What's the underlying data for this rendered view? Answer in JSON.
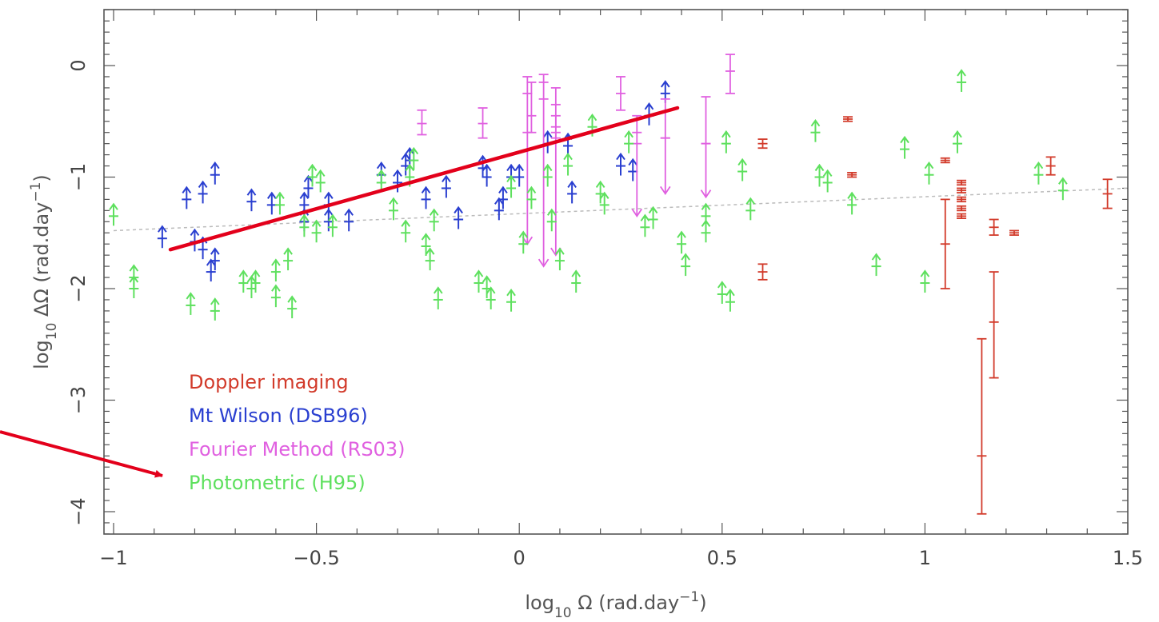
{
  "chart_data": {
    "type": "scatter",
    "title": "",
    "xlabel": {
      "prefix": "log",
      "sub": "10",
      "mid": " Ω (rad.day",
      "sup": "−1",
      "suffix": ")"
    },
    "ylabel": {
      "prefix": "log",
      "sub": "10",
      "mid": " ΔΩ (rad.day",
      "sup": "−1",
      "suffix": ")"
    },
    "xlim": [
      -1,
      1.5
    ],
    "ylim": [
      -4.3,
      0.5
    ],
    "xticks": [
      -1,
      -0.5,
      0,
      0.5,
      1,
      1.5
    ],
    "xtick_labels": [
      "−1",
      "−0.5",
      "0",
      "0.5",
      "1",
      "1.5"
    ],
    "yticks": [
      0,
      -1,
      -2,
      -3,
      -4
    ],
    "ytick_labels": [
      "0",
      "−1",
      "−2",
      "−3",
      "−4"
    ],
    "grid": false,
    "legend_position": "bottom-left",
    "series": [
      {
        "name": "Doppler imaging",
        "color": "#d23a2a",
        "marker": "errorbar",
        "points": [
          {
            "x": 0.6,
            "y": -0.7,
            "lo": -0.74,
            "hi": -0.66
          },
          {
            "x": 0.6,
            "y": -1.85,
            "lo": -1.92,
            "hi": -1.78
          },
          {
            "x": 0.81,
            "y": -0.48,
            "lo": -0.5,
            "hi": -0.46
          },
          {
            "x": 0.82,
            "y": -0.98,
            "lo": -1.0,
            "hi": -0.96
          },
          {
            "x": 1.05,
            "y": -0.85,
            "lo": -0.87,
            "hi": -0.83
          },
          {
            "x": 1.05,
            "y": -1.6,
            "lo": -2.0,
            "hi": -1.2
          },
          {
            "x": 1.09,
            "y": -1.05,
            "lo": -1.07,
            "hi": -1.03
          },
          {
            "x": 1.09,
            "y": -1.12,
            "lo": -1.14,
            "hi": -1.1
          },
          {
            "x": 1.09,
            "y": -1.2,
            "lo": -1.22,
            "hi": -1.18
          },
          {
            "x": 1.09,
            "y": -1.28,
            "lo": -1.3,
            "hi": -1.26
          },
          {
            "x": 1.09,
            "y": -1.35,
            "lo": -1.37,
            "hi": -1.33
          },
          {
            "x": 1.14,
            "y": -3.5,
            "lo": -4.02,
            "hi": -2.45
          },
          {
            "x": 1.17,
            "y": -1.45,
            "lo": -1.52,
            "hi": -1.38
          },
          {
            "x": 1.17,
            "y": -2.3,
            "lo": -2.8,
            "hi": -1.85
          },
          {
            "x": 1.22,
            "y": -1.5,
            "lo": -1.52,
            "hi": -1.48
          },
          {
            "x": 1.31,
            "y": -0.9,
            "lo": -0.98,
            "hi": -0.82
          },
          {
            "x": 1.45,
            "y": -1.15,
            "lo": -1.28,
            "hi": -1.02
          }
        ]
      },
      {
        "name": "Mt Wilson (DSB96)",
        "color": "#2a3fd0",
        "marker": "lower-limit",
        "points": [
          {
            "x": -0.88,
            "y": -1.55
          },
          {
            "x": -0.82,
            "y": -1.2
          },
          {
            "x": -0.8,
            "y": -1.58
          },
          {
            "x": -0.78,
            "y": -1.65
          },
          {
            "x": -0.78,
            "y": -1.15
          },
          {
            "x": -0.76,
            "y": -1.85
          },
          {
            "x": -0.75,
            "y": -1.75
          },
          {
            "x": -0.75,
            "y": -0.98
          },
          {
            "x": -0.66,
            "y": -1.22
          },
          {
            "x": -0.61,
            "y": -1.25
          },
          {
            "x": -0.53,
            "y": -1.4
          },
          {
            "x": -0.53,
            "y": -1.25
          },
          {
            "x": -0.52,
            "y": -1.1
          },
          {
            "x": -0.47,
            "y": -1.4
          },
          {
            "x": -0.47,
            "y": -1.25
          },
          {
            "x": -0.42,
            "y": -1.4
          },
          {
            "x": -0.34,
            "y": -0.98
          },
          {
            "x": -0.3,
            "y": -1.05
          },
          {
            "x": -0.28,
            "y": -0.9
          },
          {
            "x": -0.27,
            "y": -0.85
          },
          {
            "x": -0.23,
            "y": -1.2
          },
          {
            "x": -0.18,
            "y": -1.1
          },
          {
            "x": -0.15,
            "y": -1.38
          },
          {
            "x": -0.09,
            "y": -0.92
          },
          {
            "x": -0.08,
            "y": -1.0
          },
          {
            "x": -0.05,
            "y": -1.3
          },
          {
            "x": -0.04,
            "y": -1.2
          },
          {
            "x": -0.02,
            "y": -1.0
          },
          {
            "x": 0.0,
            "y": -1.0
          },
          {
            "x": 0.07,
            "y": -0.7
          },
          {
            "x": 0.12,
            "y": -0.72
          },
          {
            "x": 0.13,
            "y": -1.15
          },
          {
            "x": 0.25,
            "y": -0.9
          },
          {
            "x": 0.28,
            "y": -0.95
          },
          {
            "x": 0.32,
            "y": -0.45
          },
          {
            "x": 0.36,
            "y": -0.25
          }
        ]
      },
      {
        "name": "Fourier Method (RS03)",
        "color": "#e060e0",
        "marker": "errorbar",
        "points": [
          {
            "x": -0.24,
            "y": -0.52,
            "lo": -0.62,
            "hi": -0.4
          },
          {
            "x": -0.09,
            "y": -0.52,
            "lo": -0.65,
            "hi": -0.38
          },
          {
            "x": 0.02,
            "y": -0.25,
            "lo": -0.6,
            "hi": -0.1,
            "arrow": -1.6
          },
          {
            "x": 0.03,
            "y": -0.45,
            "lo": -0.6,
            "hi": -0.15
          },
          {
            "x": 0.06,
            "y": -0.15,
            "lo": -0.3,
            "hi": -0.08,
            "arrow": -1.8
          },
          {
            "x": 0.09,
            "y": -0.35,
            "lo": -0.6,
            "hi": -0.2,
            "arrow": -1.7
          },
          {
            "x": 0.09,
            "y": -0.55,
            "lo": -0.65,
            "hi": -0.45
          },
          {
            "x": 0.25,
            "y": -0.25,
            "lo": -0.4,
            "hi": -0.1
          },
          {
            "x": 0.29,
            "y": -0.6,
            "lo": -0.7,
            "hi": -0.45,
            "arrow": -1.35
          },
          {
            "x": 0.36,
            "y": -0.65,
            "lo": -0.65,
            "hi": -0.3,
            "arrow": -1.15
          },
          {
            "x": 0.46,
            "y": -0.7,
            "lo": -0.7,
            "hi": -0.28,
            "arrow": -1.18
          },
          {
            "x": 0.52,
            "y": -0.05,
            "lo": -0.25,
            "hi": 0.1
          }
        ]
      },
      {
        "name": "Photometric (H95)",
        "color": "#5ee05e",
        "marker": "lower-limit",
        "points": [
          {
            "x": -1.0,
            "y": -1.35
          },
          {
            "x": -0.95,
            "y": -1.9
          },
          {
            "x": -0.95,
            "y": -2.0
          },
          {
            "x": -0.81,
            "y": -2.15
          },
          {
            "x": -0.75,
            "y": -2.2
          },
          {
            "x": -0.68,
            "y": -1.95
          },
          {
            "x": -0.66,
            "y": -2.0
          },
          {
            "x": -0.65,
            "y": -1.95
          },
          {
            "x": -0.59,
            "y": -1.25
          },
          {
            "x": -0.6,
            "y": -1.85
          },
          {
            "x": -0.6,
            "y": -2.08
          },
          {
            "x": -0.57,
            "y": -1.75
          },
          {
            "x": -0.56,
            "y": -2.18
          },
          {
            "x": -0.53,
            "y": -1.45
          },
          {
            "x": -0.51,
            "y": -1.0
          },
          {
            "x": -0.5,
            "y": -1.5
          },
          {
            "x": -0.49,
            "y": -1.05
          },
          {
            "x": -0.46,
            "y": -1.45
          },
          {
            "x": -0.34,
            "y": -1.05
          },
          {
            "x": -0.31,
            "y": -1.3
          },
          {
            "x": -0.28,
            "y": -1.5
          },
          {
            "x": -0.27,
            "y": -1.0
          },
          {
            "x": -0.26,
            "y": -0.85
          },
          {
            "x": -0.23,
            "y": -1.62
          },
          {
            "x": -0.22,
            "y": -1.75
          },
          {
            "x": -0.21,
            "y": -1.4
          },
          {
            "x": -0.2,
            "y": -2.1
          },
          {
            "x": -0.1,
            "y": -1.95
          },
          {
            "x": -0.08,
            "y": -2.0
          },
          {
            "x": -0.07,
            "y": -2.1
          },
          {
            "x": -0.02,
            "y": -2.12
          },
          {
            "x": -0.02,
            "y": -1.1
          },
          {
            "x": 0.01,
            "y": -1.6
          },
          {
            "x": 0.03,
            "y": -1.2
          },
          {
            "x": 0.07,
            "y": -1.0
          },
          {
            "x": 0.08,
            "y": -1.4
          },
          {
            "x": 0.1,
            "y": -1.75
          },
          {
            "x": 0.12,
            "y": -0.9
          },
          {
            "x": 0.14,
            "y": -1.95
          },
          {
            "x": 0.18,
            "y": -0.55
          },
          {
            "x": 0.2,
            "y": -1.15
          },
          {
            "x": 0.21,
            "y": -1.25
          },
          {
            "x": 0.27,
            "y": -0.7
          },
          {
            "x": 0.31,
            "y": -1.45
          },
          {
            "x": 0.33,
            "y": -1.38
          },
          {
            "x": 0.4,
            "y": -1.6
          },
          {
            "x": 0.41,
            "y": -1.8
          },
          {
            "x": 0.46,
            "y": -1.35
          },
          {
            "x": 0.46,
            "y": -1.5
          },
          {
            "x": 0.5,
            "y": -2.05
          },
          {
            "x": 0.51,
            "y": -0.7
          },
          {
            "x": 0.52,
            "y": -2.12
          },
          {
            "x": 0.55,
            "y": -0.95
          },
          {
            "x": 0.57,
            "y": -1.3
          },
          {
            "x": 0.73,
            "y": -0.6
          },
          {
            "x": 0.74,
            "y": -1.0
          },
          {
            "x": 0.76,
            "y": -1.05
          },
          {
            "x": 0.82,
            "y": -1.25
          },
          {
            "x": 0.88,
            "y": -1.8
          },
          {
            "x": 0.95,
            "y": -0.75
          },
          {
            "x": 1.0,
            "y": -1.95
          },
          {
            "x": 1.01,
            "y": -0.98
          },
          {
            "x": 1.08,
            "y": -0.7
          },
          {
            "x": 1.09,
            "y": -0.15
          },
          {
            "x": 1.28,
            "y": -0.98
          },
          {
            "x": 1.34,
            "y": -1.12
          }
        ]
      }
    ],
    "overlays": {
      "dashed_fit": {
        "color": "#bbbbbb",
        "x": [
          -1.0,
          1.5
        ],
        "y": [
          -1.48,
          -1.1
        ]
      },
      "red_trend_line": {
        "color": "#e3001b",
        "x": [
          -0.86,
          0.39
        ],
        "y": [
          -1.65,
          -0.38
        ]
      },
      "red_pointer_arrow": {
        "color": "#e3001b",
        "points_to": "Photometric (H95)"
      }
    }
  }
}
